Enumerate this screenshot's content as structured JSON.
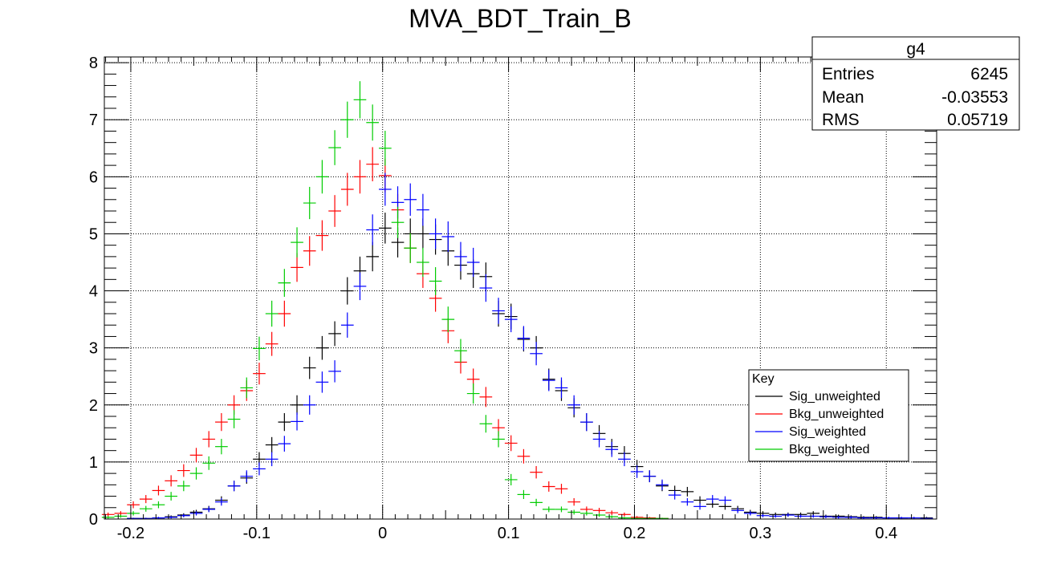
{
  "chart_data": {
    "type": "scatter",
    "title": "MVA_BDT_Train_B",
    "xlabel": "",
    "ylabel": "",
    "xlim": [
      -0.221,
      0.44
    ],
    "ylim": [
      0,
      8.1
    ],
    "grid": true,
    "x_ticks": [
      -0.2,
      -0.1,
      0,
      0.1,
      0.2,
      0.3,
      0.4
    ],
    "x_tick_labels": [
      "-0.2",
      "-0.1",
      "0",
      "0.1",
      "0.2",
      "0.3",
      "0.4"
    ],
    "y_ticks": [
      0,
      1,
      2,
      3,
      4,
      5,
      6,
      7,
      8
    ],
    "y_tick_labels": [
      "0",
      "1",
      "2",
      "3",
      "4",
      "5",
      "6",
      "7",
      "8"
    ],
    "stats_box": {
      "name": "g4",
      "rows": [
        {
          "label": "Entries",
          "value": "6245"
        },
        {
          "label": "Mean",
          "value": "-0.03553"
        },
        {
          "label": "RMS",
          "value": "0.05719"
        }
      ]
    },
    "legend": {
      "title": "Key",
      "position": "center-right",
      "entries": [
        "Sig_unweighted",
        "Bkg_unweighted",
        "Sig_weighted",
        "Bkg_weighted"
      ]
    },
    "series": [
      {
        "name": "Sig_unweighted",
        "color": "#000000",
        "x": [
          -0.198,
          -0.188,
          -0.178,
          -0.168,
          -0.158,
          -0.148,
          -0.138,
          -0.128,
          -0.118,
          -0.108,
          -0.098,
          -0.088,
          -0.078,
          -0.068,
          -0.058,
          -0.048,
          -0.038,
          -0.028,
          -0.018,
          -0.008,
          0.002,
          0.012,
          0.022,
          0.032,
          0.042,
          0.052,
          0.062,
          0.072,
          0.082,
          0.092,
          0.102,
          0.112,
          0.122,
          0.132,
          0.142,
          0.152,
          0.162,
          0.172,
          0.182,
          0.192,
          0.202,
          0.212,
          0.222,
          0.232,
          0.242,
          0.252,
          0.262,
          0.272,
          0.282,
          0.292,
          0.302,
          0.312,
          0.322,
          0.332,
          0.342,
          0.352,
          0.362,
          0.372,
          0.382,
          0.392,
          0.402,
          0.412,
          0.422,
          0.432
        ],
        "y": [
          0.01,
          0.01,
          0.02,
          0.04,
          0.07,
          0.12,
          0.18,
          0.33,
          0.58,
          0.72,
          1.05,
          1.3,
          1.7,
          2.0,
          2.65,
          3.0,
          3.25,
          4.0,
          4.35,
          4.6,
          5.1,
          4.85,
          5.0,
          5.0,
          4.9,
          4.7,
          4.45,
          4.3,
          4.25,
          3.6,
          3.55,
          3.15,
          3.0,
          2.45,
          2.25,
          1.95,
          1.7,
          1.5,
          1.27,
          1.15,
          0.92,
          0.75,
          0.58,
          0.5,
          0.48,
          0.33,
          0.26,
          0.22,
          0.18,
          0.12,
          0.1,
          0.08,
          0.08,
          0.08,
          0.1,
          0.05,
          0.05,
          0.04,
          0.03,
          0.03,
          0.02,
          0.02,
          0.02,
          0.02
        ]
      },
      {
        "name": "Bkg_unweighted",
        "color": "#ff0000",
        "x": [
          -0.218,
          -0.208,
          -0.198,
          -0.188,
          -0.178,
          -0.168,
          -0.158,
          -0.148,
          -0.138,
          -0.128,
          -0.118,
          -0.108,
          -0.098,
          -0.088,
          -0.078,
          -0.068,
          -0.058,
          -0.048,
          -0.038,
          -0.028,
          -0.018,
          -0.008,
          0.002,
          0.012,
          0.022,
          0.032,
          0.042,
          0.052,
          0.062,
          0.072,
          0.082,
          0.092,
          0.102,
          0.112,
          0.122,
          0.132,
          0.142,
          0.152,
          0.162,
          0.172,
          0.182,
          0.192,
          0.202,
          0.212,
          0.222
        ],
        "y": [
          0.08,
          0.1,
          0.25,
          0.35,
          0.5,
          0.67,
          0.85,
          1.12,
          1.4,
          1.7,
          2.0,
          2.25,
          2.55,
          3.07,
          3.6,
          4.41,
          4.7,
          4.97,
          5.4,
          5.78,
          6.0,
          6.22,
          6.02,
          5.42,
          4.75,
          4.3,
          3.87,
          3.3,
          2.75,
          2.45,
          2.14,
          1.6,
          1.33,
          1.1,
          0.82,
          0.57,
          0.53,
          0.3,
          0.17,
          0.15,
          0.11,
          0.08,
          0.03,
          0.02,
          0.01
        ]
      },
      {
        "name": "Sig_weighted",
        "color": "#0000ff",
        "x": [
          -0.198,
          -0.188,
          -0.178,
          -0.168,
          -0.158,
          -0.148,
          -0.138,
          -0.128,
          -0.118,
          -0.108,
          -0.098,
          -0.088,
          -0.078,
          -0.068,
          -0.058,
          -0.048,
          -0.038,
          -0.028,
          -0.018,
          -0.008,
          0.002,
          0.012,
          0.022,
          0.032,
          0.042,
          0.052,
          0.062,
          0.072,
          0.082,
          0.092,
          0.102,
          0.112,
          0.122,
          0.132,
          0.142,
          0.152,
          0.162,
          0.172,
          0.182,
          0.192,
          0.202,
          0.212,
          0.222,
          0.232,
          0.242,
          0.252,
          0.262,
          0.272,
          0.282,
          0.292,
          0.302,
          0.312,
          0.322,
          0.332,
          0.342,
          0.352,
          0.362,
          0.372,
          0.382,
          0.392,
          0.402,
          0.412,
          0.422,
          0.432
        ],
        "y": [
          0.01,
          0.01,
          0.02,
          0.03,
          0.06,
          0.1,
          0.17,
          0.3,
          0.58,
          0.75,
          0.88,
          1.05,
          1.32,
          1.71,
          2.0,
          2.4,
          2.59,
          3.4,
          4.08,
          5.07,
          5.78,
          5.55,
          5.6,
          5.42,
          5.0,
          4.95,
          4.6,
          4.5,
          4.05,
          3.65,
          3.5,
          3.17,
          2.9,
          2.43,
          2.3,
          2.0,
          1.7,
          1.4,
          1.22,
          1.05,
          0.83,
          0.75,
          0.6,
          0.42,
          0.3,
          0.22,
          0.35,
          0.33,
          0.15,
          0.1,
          0.06,
          0.05,
          0.07,
          0.05,
          0.05,
          0.04,
          0.03,
          0.03,
          0.02,
          0.02,
          0.02,
          0.02,
          0.02,
          0.01
        ]
      },
      {
        "name": "Bkg_weighted",
        "color": "#00cc00",
        "x": [
          -0.218,
          -0.208,
          -0.198,
          -0.188,
          -0.178,
          -0.168,
          -0.158,
          -0.148,
          -0.138,
          -0.128,
          -0.118,
          -0.108,
          -0.098,
          -0.088,
          -0.078,
          -0.068,
          -0.058,
          -0.048,
          -0.038,
          -0.028,
          -0.018,
          -0.008,
          0.002,
          0.012,
          0.022,
          0.032,
          0.042,
          0.052,
          0.062,
          0.072,
          0.082,
          0.092,
          0.102,
          0.112,
          0.122,
          0.132,
          0.142,
          0.152,
          0.162,
          0.172,
          0.182,
          0.192,
          0.202,
          0.212,
          0.222
        ],
        "y": [
          0.03,
          0.05,
          0.1,
          0.18,
          0.25,
          0.4,
          0.58,
          0.8,
          0.98,
          1.27,
          1.75,
          2.3,
          2.99,
          3.6,
          4.14,
          4.85,
          5.54,
          6.0,
          6.51,
          7.0,
          7.35,
          6.95,
          6.5,
          5.2,
          4.75,
          4.5,
          4.17,
          3.5,
          2.95,
          2.2,
          1.67,
          1.4,
          0.69,
          0.43,
          0.29,
          0.17,
          0.17,
          0.12,
          0.1,
          0.07,
          0.04,
          0.02,
          0.01,
          0.01,
          0.01
        ]
      }
    ]
  }
}
